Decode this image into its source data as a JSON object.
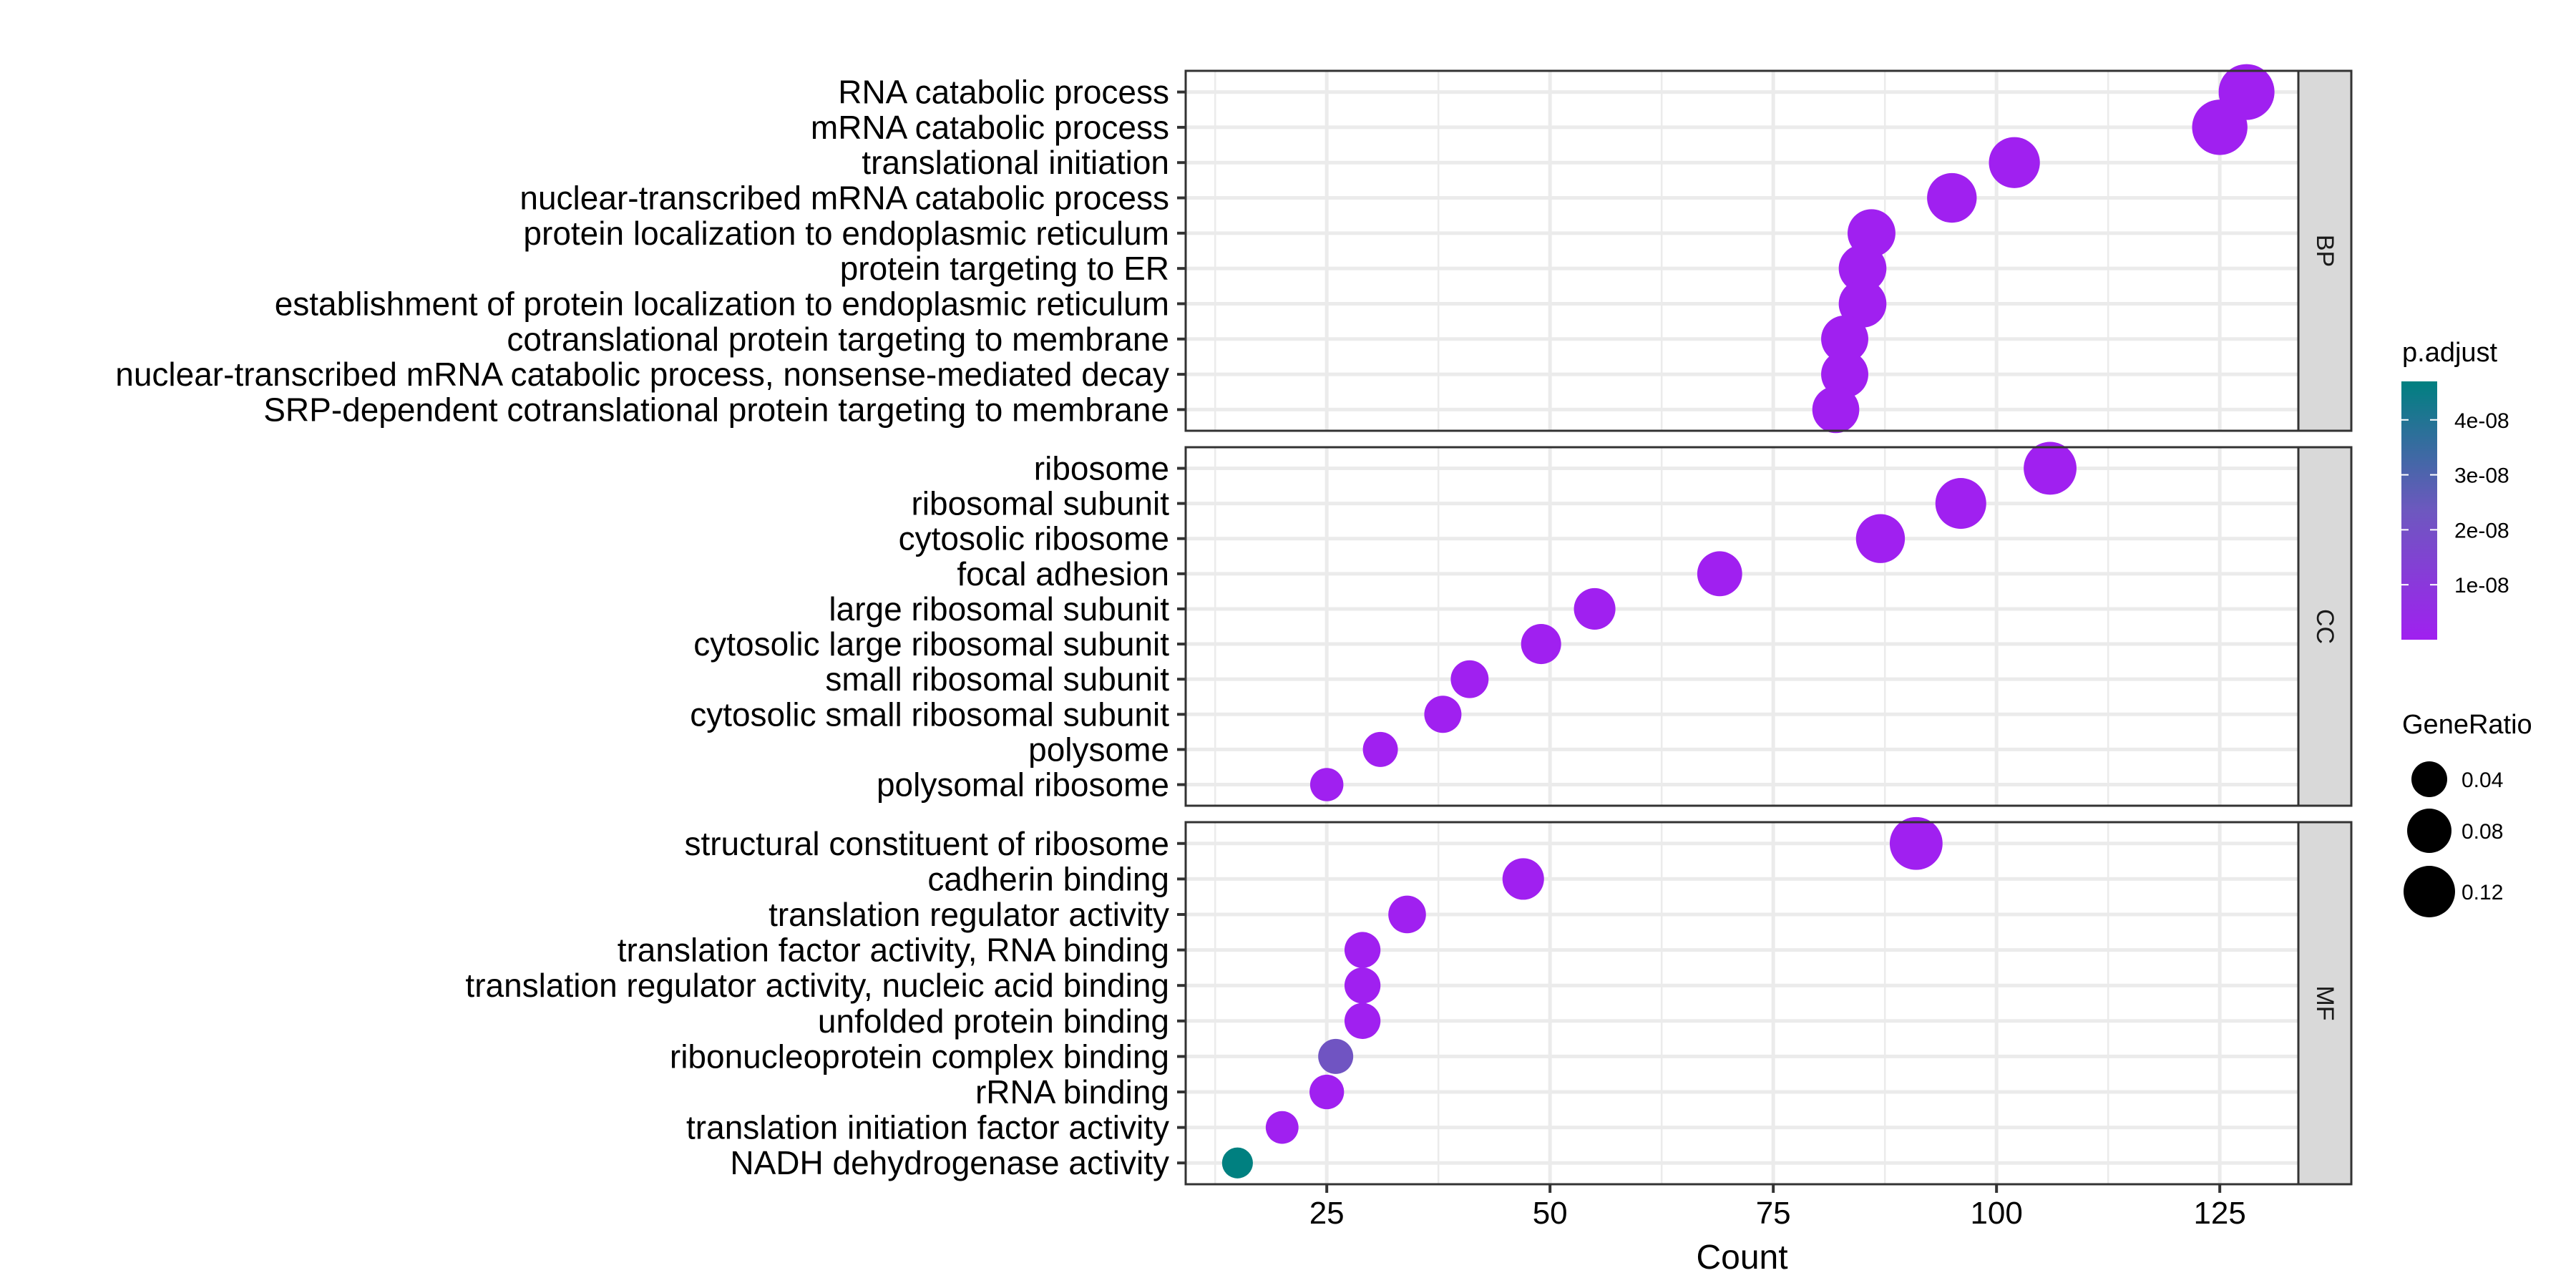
{
  "chart_data": {
    "type": "scatter",
    "subtype": "dot-plot (faceted)",
    "xlabel": "Count",
    "ylabel": "",
    "x_ticks": [
      25,
      50,
      75,
      100,
      125
    ],
    "xlim": [
      9.2,
      133.8
    ],
    "grid": true,
    "legend_position": "right",
    "color_legend": {
      "title": "p.adjust",
      "ticks": [
        1e-08,
        2e-08,
        3e-08,
        4e-08
      ],
      "tick_labels": [
        "1e-08",
        "2e-08",
        "3e-08",
        "4e-08"
      ],
      "range": [
        0,
        4.7e-08
      ],
      "low_color": "#A020F0",
      "high_color": "#008080"
    },
    "size_legend": {
      "title": "GeneRatio",
      "values": [
        0.04,
        0.08,
        0.12
      ],
      "labels": [
        "0.04",
        "0.08",
        "0.12"
      ]
    },
    "facets": [
      {
        "name": "BP",
        "terms": [
          {
            "label": "RNA catabolic process",
            "count": 128,
            "gene_ratio": 0.147,
            "p_adjust": 1e-10
          },
          {
            "label": "mRNA catabolic process",
            "count": 125,
            "gene_ratio": 0.144,
            "p_adjust": 1e-10
          },
          {
            "label": "translational initiation",
            "count": 102,
            "gene_ratio": 0.117,
            "p_adjust": 1e-10
          },
          {
            "label": "nuclear-transcribed mRNA catabolic process",
            "count": 95,
            "gene_ratio": 0.109,
            "p_adjust": 1e-10
          },
          {
            "label": "protein localization to endoplasmic reticulum",
            "count": 86,
            "gene_ratio": 0.099,
            "p_adjust": 1e-10
          },
          {
            "label": "protein targeting to ER",
            "count": 85,
            "gene_ratio": 0.098,
            "p_adjust": 1e-10
          },
          {
            "label": "establishment of protein localization to endoplasmic reticulum",
            "count": 85,
            "gene_ratio": 0.098,
            "p_adjust": 1e-10
          },
          {
            "label": "cotranslational protein targeting to membrane",
            "count": 83,
            "gene_ratio": 0.095,
            "p_adjust": 1e-10
          },
          {
            "label": "nuclear-transcribed mRNA catabolic process, nonsense-mediated decay",
            "count": 83,
            "gene_ratio": 0.095,
            "p_adjust": 1e-10
          },
          {
            "label": "SRP-dependent cotranslational protein targeting to membrane",
            "count": 82,
            "gene_ratio": 0.094,
            "p_adjust": 1e-10
          }
        ]
      },
      {
        "name": "CC",
        "terms": [
          {
            "label": "ribosome",
            "count": 106,
            "gene_ratio": 0.128,
            "p_adjust": 1e-10
          },
          {
            "label": "ribosomal subunit",
            "count": 96,
            "gene_ratio": 0.116,
            "p_adjust": 1e-10
          },
          {
            "label": "cytosolic ribosome",
            "count": 87,
            "gene_ratio": 0.105,
            "p_adjust": 1e-10
          },
          {
            "label": "focal adhesion",
            "count": 69,
            "gene_ratio": 0.083,
            "p_adjust": 1e-10
          },
          {
            "label": "large ribosomal subunit",
            "count": 55,
            "gene_ratio": 0.066,
            "p_adjust": 1e-10
          },
          {
            "label": "cytosolic large ribosomal subunit",
            "count": 49,
            "gene_ratio": 0.059,
            "p_adjust": 1e-10
          },
          {
            "label": "small ribosomal subunit",
            "count": 41,
            "gene_ratio": 0.049,
            "p_adjust": 1e-10
          },
          {
            "label": "cytosolic small ribosomal subunit",
            "count": 38,
            "gene_ratio": 0.046,
            "p_adjust": 1e-10
          },
          {
            "label": "polysome",
            "count": 31,
            "gene_ratio": 0.037,
            "p_adjust": 1e-10
          },
          {
            "label": "polysomal ribosome",
            "count": 25,
            "gene_ratio": 0.03,
            "p_adjust": 1e-10
          }
        ]
      },
      {
        "name": "MF",
        "terms": [
          {
            "label": "structural constituent of ribosome",
            "count": 91,
            "gene_ratio": 0.128,
            "p_adjust": 1e-10
          },
          {
            "label": "cadherin binding",
            "count": 47,
            "gene_ratio": 0.066,
            "p_adjust": 1e-10
          },
          {
            "label": "translation regulator activity",
            "count": 34,
            "gene_ratio": 0.048,
            "p_adjust": 1e-10
          },
          {
            "label": "translation factor activity, RNA binding",
            "count": 29,
            "gene_ratio": 0.041,
            "p_adjust": 1e-10
          },
          {
            "label": "translation regulator activity, nucleic acid binding",
            "count": 29,
            "gene_ratio": 0.041,
            "p_adjust": 1e-10
          },
          {
            "label": "unfolded protein binding",
            "count": 29,
            "gene_ratio": 0.041,
            "p_adjust": 1e-10
          },
          {
            "label": "ribonucleoprotein complex binding",
            "count": 26,
            "gene_ratio": 0.037,
            "p_adjust": 2.2e-08
          },
          {
            "label": "rRNA binding",
            "count": 25,
            "gene_ratio": 0.035,
            "p_adjust": 1e-10
          },
          {
            "label": "translation initiation factor activity",
            "count": 20,
            "gene_ratio": 0.028,
            "p_adjust": 1e-10
          },
          {
            "label": "NADH dehydrogenase activity",
            "count": 15,
            "gene_ratio": 0.021,
            "p_adjust": 4.7e-08
          }
        ]
      }
    ]
  }
}
